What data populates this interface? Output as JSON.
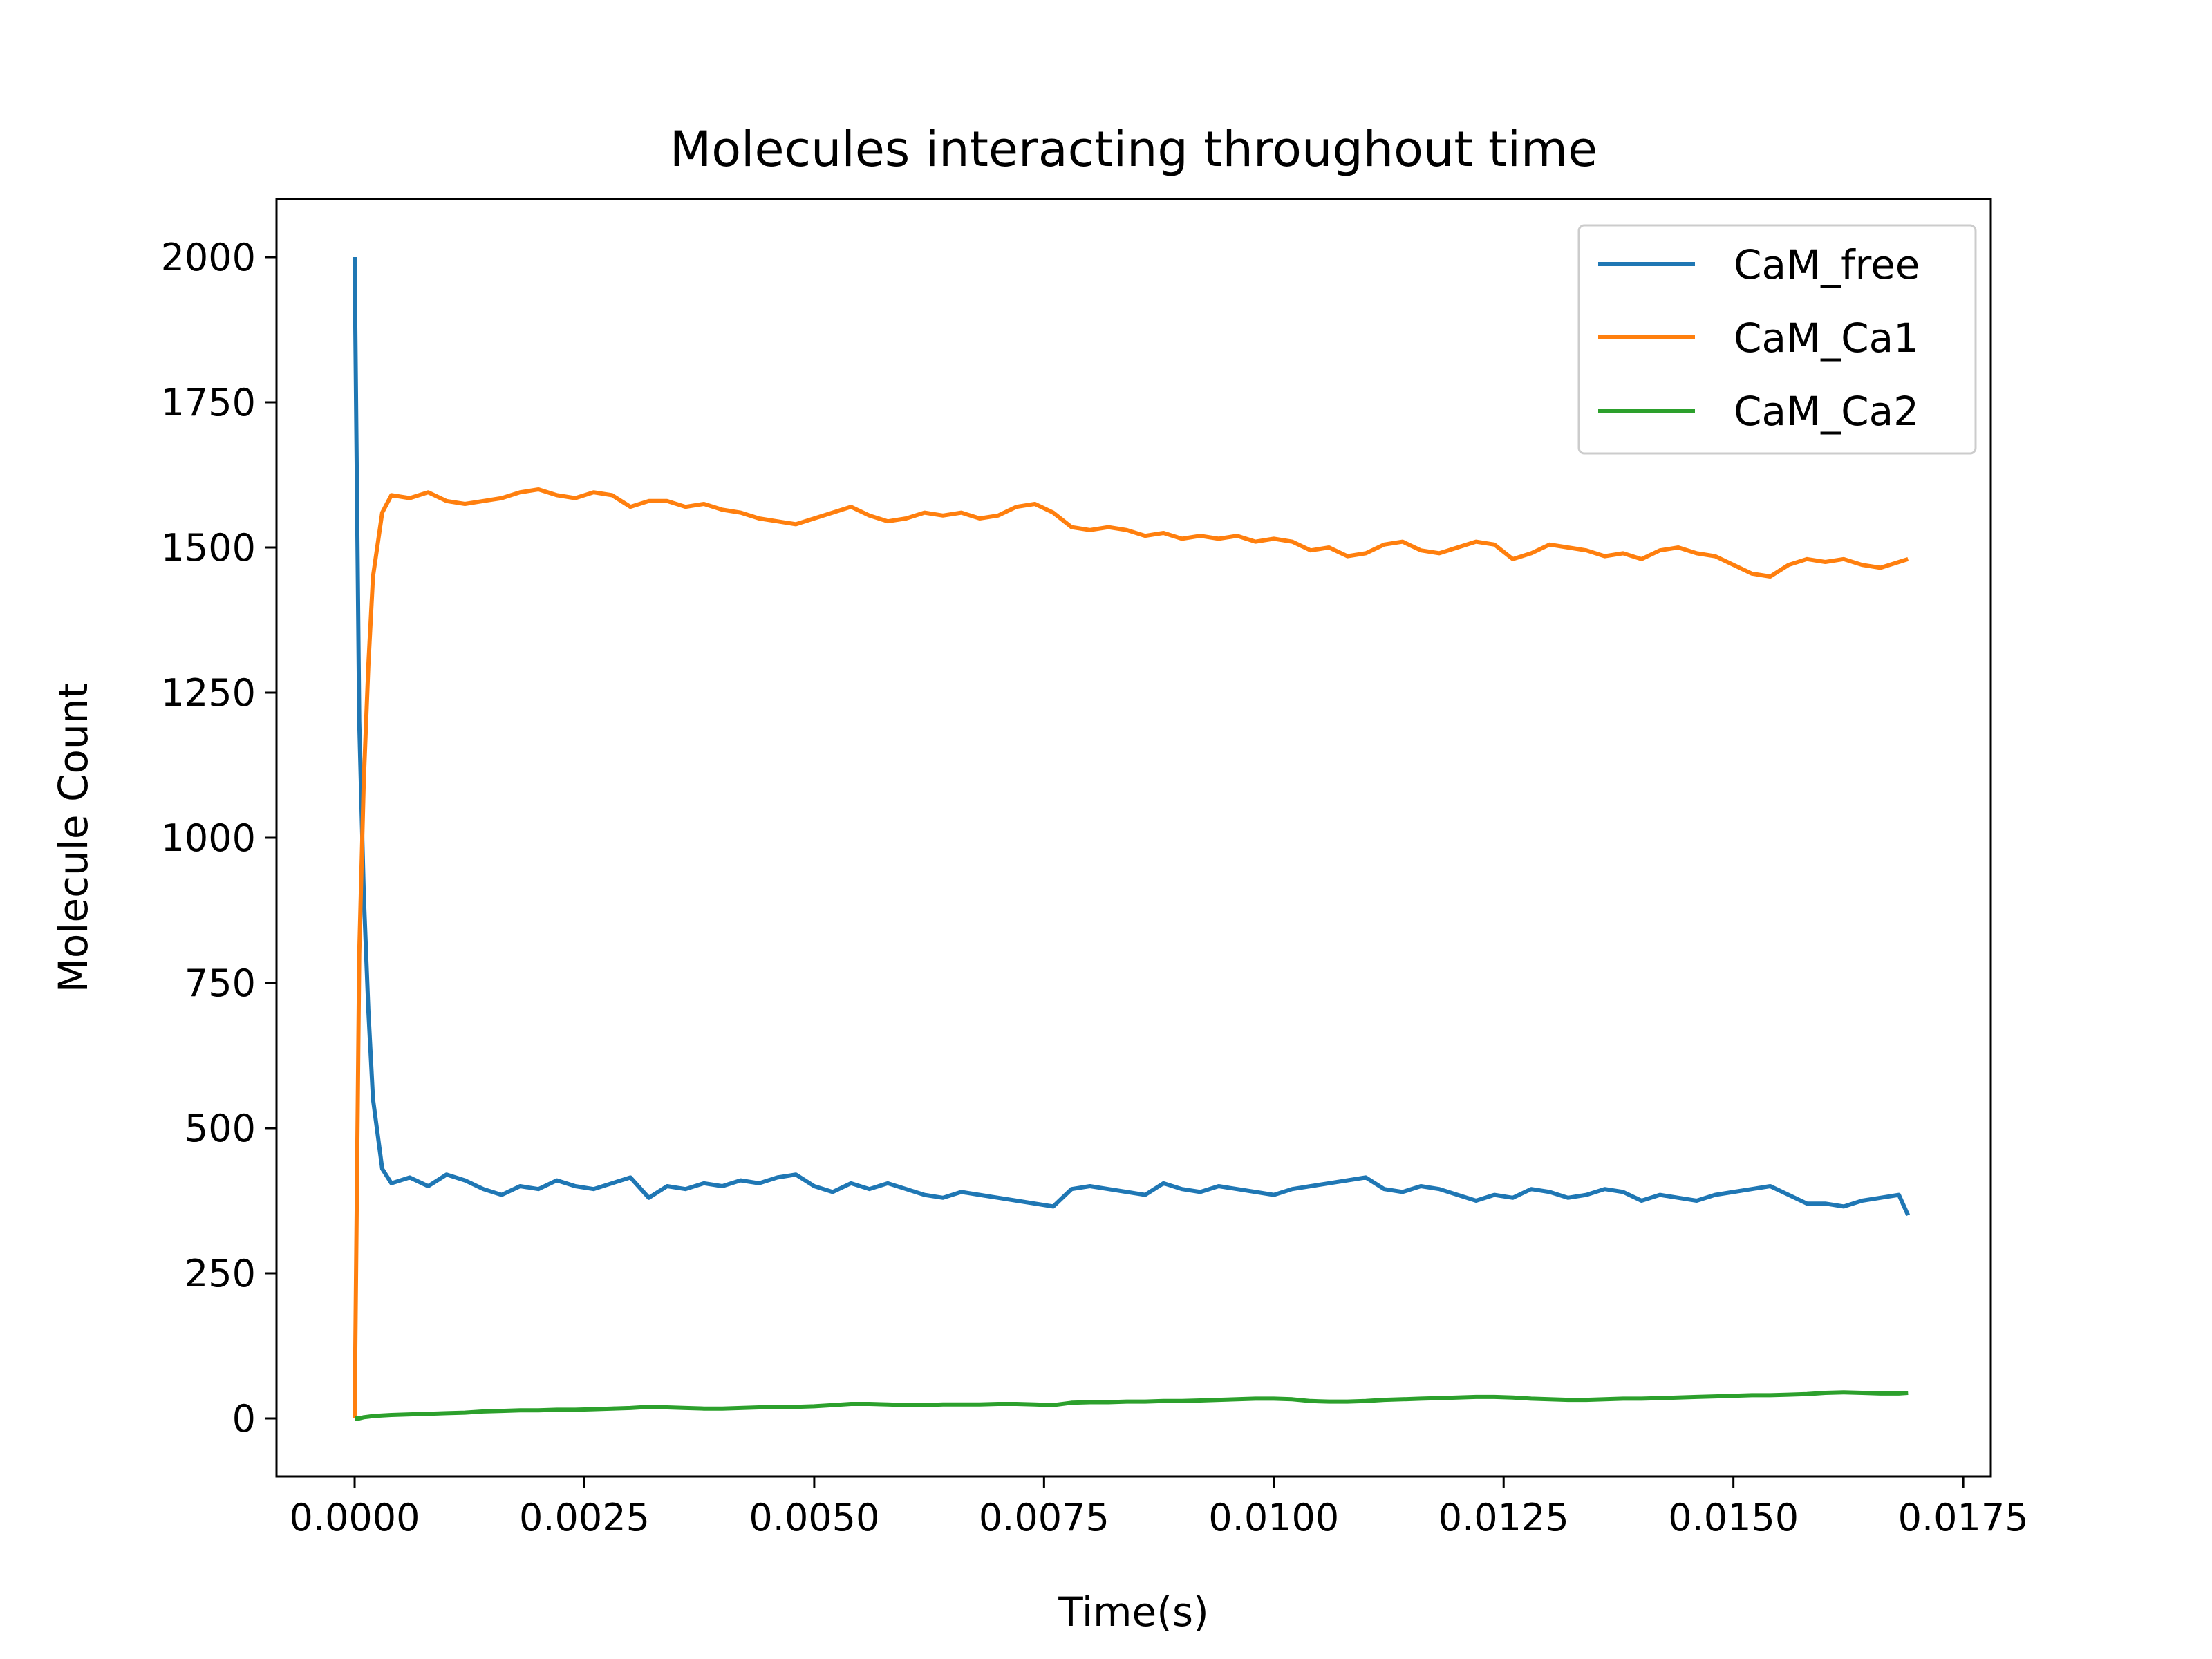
{
  "chart_data": {
    "type": "line",
    "title": "Molecules interacting throughout time",
    "xlabel": "Time(s)",
    "ylabel": "Molecule Count",
    "xlim": [
      -0.00085,
      0.0178
    ],
    "ylim": [
      -100,
      2100
    ],
    "xticks": [
      "0.0000",
      "0.0025",
      "0.0050",
      "0.0075",
      "0.0100",
      "0.0125",
      "0.0150",
      "0.0175"
    ],
    "yticks": [
      "0",
      "250",
      "500",
      "750",
      "1000",
      "1250",
      "1500",
      "1750",
      "2000"
    ],
    "legend_position": "top-right",
    "x": [
      0.0,
      5e-05,
      0.0001,
      0.00015,
      0.0002,
      0.0003,
      0.0004,
      0.0006,
      0.0008,
      0.001,
      0.0012,
      0.0014,
      0.0016,
      0.0018,
      0.002,
      0.0022,
      0.0024,
      0.0026,
      0.0028,
      0.003,
      0.0032,
      0.0034,
      0.0036,
      0.0038,
      0.004,
      0.0042,
      0.0044,
      0.0046,
      0.0048,
      0.005,
      0.0052,
      0.0054,
      0.0056,
      0.0058,
      0.006,
      0.0062,
      0.0064,
      0.0066,
      0.0068,
      0.007,
      0.0072,
      0.0074,
      0.0076,
      0.0078,
      0.008,
      0.0082,
      0.0084,
      0.0086,
      0.0088,
      0.009,
      0.0092,
      0.0094,
      0.0096,
      0.0098,
      0.01,
      0.0102,
      0.0104,
      0.0106,
      0.0108,
      0.011,
      0.0112,
      0.0114,
      0.0116,
      0.0118,
      0.012,
      0.0122,
      0.0124,
      0.0126,
      0.0128,
      0.013,
      0.0132,
      0.0134,
      0.0136,
      0.0138,
      0.014,
      0.0142,
      0.0144,
      0.0146,
      0.0148,
      0.015,
      0.0152,
      0.0154,
      0.0156,
      0.0158,
      0.016,
      0.0162,
      0.0164,
      0.0166,
      0.0168,
      0.0169
    ],
    "series": [
      {
        "name": "CaM_free",
        "color": "#1f77b4",
        "values": [
          2000,
          1200,
          900,
          700,
          550,
          430,
          405,
          415,
          400,
          420,
          410,
          395,
          385,
          400,
          395,
          410,
          400,
          395,
          405,
          415,
          380,
          400,
          395,
          405,
          400,
          410,
          405,
          415,
          420,
          400,
          390,
          405,
          395,
          405,
          395,
          385,
          380,
          390,
          385,
          380,
          375,
          370,
          365,
          395,
          400,
          395,
          390,
          385,
          405,
          395,
          390,
          400,
          395,
          390,
          385,
          395,
          400,
          405,
          410,
          415,
          395,
          390,
          400,
          395,
          385,
          375,
          385,
          380,
          395,
          390,
          380,
          385,
          395,
          390,
          375,
          385,
          380,
          375,
          385,
          390,
          395,
          400,
          385,
          370,
          370,
          365,
          375,
          380,
          385,
          350
        ]
      },
      {
        "name": "CaM_Ca1",
        "color": "#ff7f0e",
        "values": [
          0,
          800,
          1100,
          1300,
          1450,
          1560,
          1590,
          1585,
          1595,
          1580,
          1575,
          1580,
          1585,
          1595,
          1600,
          1590,
          1585,
          1595,
          1590,
          1570,
          1580,
          1580,
          1570,
          1575,
          1565,
          1560,
          1550,
          1545,
          1540,
          1550,
          1560,
          1570,
          1555,
          1545,
          1550,
          1560,
          1555,
          1560,
          1550,
          1555,
          1570,
          1575,
          1560,
          1535,
          1530,
          1535,
          1530,
          1520,
          1525,
          1515,
          1520,
          1515,
          1520,
          1510,
          1515,
          1510,
          1495,
          1500,
          1485,
          1490,
          1505,
          1510,
          1495,
          1490,
          1500,
          1510,
          1505,
          1480,
          1490,
          1505,
          1500,
          1495,
          1485,
          1490,
          1480,
          1495,
          1500,
          1490,
          1485,
          1470,
          1455,
          1450,
          1470,
          1480,
          1475,
          1480,
          1470,
          1465,
          1475,
          1480
        ]
      },
      {
        "name": "CaM_Ca2",
        "color": "#2ca02c",
        "values": [
          0,
          0,
          2,
          3,
          4,
          5,
          6,
          7,
          8,
          9,
          10,
          12,
          13,
          14,
          14,
          15,
          15,
          16,
          17,
          18,
          20,
          19,
          18,
          17,
          17,
          18,
          19,
          19,
          20,
          21,
          23,
          25,
          25,
          24,
          23,
          23,
          24,
          24,
          24,
          25,
          25,
          24,
          23,
          27,
          28,
          28,
          29,
          29,
          30,
          30,
          31,
          32,
          33,
          34,
          34,
          33,
          30,
          29,
          29,
          30,
          32,
          33,
          34,
          35,
          36,
          37,
          37,
          36,
          34,
          33,
          32,
          32,
          33,
          34,
          34,
          35,
          36,
          37,
          38,
          39,
          40,
          40,
          41,
          42,
          44,
          45,
          44,
          43,
          43,
          44
        ]
      }
    ]
  }
}
